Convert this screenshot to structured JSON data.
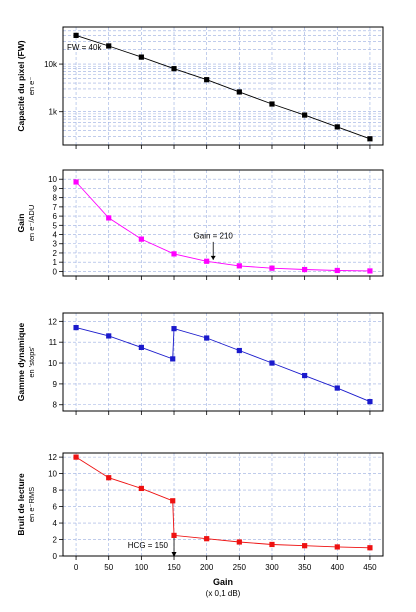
{
  "colors": {
    "frame": "#000000",
    "grid": "#9aaee0",
    "fw": "#000000",
    "gain": "#ff00ff",
    "dr": "#1a1acc",
    "noise": "#ee1111"
  },
  "chart_data": [
    {
      "type": "line",
      "ylabel": "Capacité du pixel (FW)",
      "ysublabel": "en e⁻",
      "yscale": "log",
      "ylim": [
        200,
        60000
      ],
      "yticks": [
        1000,
        10000
      ],
      "ytick_labels": [
        "1k",
        "10k"
      ],
      "xlim": [
        -20,
        470
      ],
      "x": [
        0,
        50,
        100,
        150,
        200,
        250,
        300,
        350,
        400,
        450
      ],
      "series": [
        {
          "values": [
            40000,
            24000,
            14000,
            8000,
            4700,
            2600,
            1450,
            850,
            480,
            270
          ]
        }
      ],
      "annotations": [
        "FW = 40k"
      ]
    },
    {
      "type": "line",
      "ylabel": "Gain",
      "ysublabel": "en e⁻/ADU",
      "ylim": [
        -0.5,
        11
      ],
      "yticks": [
        0,
        1,
        2,
        3,
        4,
        5,
        6,
        7,
        8,
        9,
        10
      ],
      "xlim": [
        -20,
        470
      ],
      "x": [
        0,
        50,
        100,
        150,
        200,
        250,
        300,
        350,
        400,
        450
      ],
      "series": [
        {
          "values": [
            9.7,
            5.8,
            3.5,
            1.9,
            1.1,
            0.6,
            0.35,
            0.2,
            0.1,
            0.05
          ]
        }
      ],
      "annotations": [
        "Gain = 210"
      ]
    },
    {
      "type": "line",
      "ylabel": "Gamme dynamique",
      "ysublabel": "en 'stops'",
      "ylim": [
        7.7,
        12.4
      ],
      "yticks": [
        8,
        9,
        10,
        11,
        12
      ],
      "xlim": [
        -20,
        470
      ],
      "x": [
        0,
        50,
        100,
        148,
        150,
        200,
        250,
        300,
        350,
        400,
        450
      ],
      "series": [
        {
          "values": [
            11.7,
            11.3,
            10.75,
            10.2,
            11.65,
            11.2,
            10.6,
            10.0,
            9.4,
            8.8,
            8.15
          ]
        }
      ]
    },
    {
      "type": "line",
      "ylabel": "Bruit de lecture",
      "ysublabel": "en e⁻RMS",
      "xlabel": "Gain",
      "xsublabel": "(x 0,1 dB)",
      "ylim": [
        0,
        12.5
      ],
      "yticks": [
        0,
        2,
        4,
        6,
        8,
        10,
        12
      ],
      "xlim": [
        -20,
        470
      ],
      "xticks": [
        0,
        50,
        100,
        150,
        200,
        250,
        300,
        350,
        400,
        450
      ],
      "x": [
        0,
        50,
        100,
        148,
        150,
        200,
        250,
        300,
        350,
        400,
        450
      ],
      "series": [
        {
          "values": [
            12.0,
            9.5,
            8.2,
            6.7,
            2.5,
            2.1,
            1.7,
            1.4,
            1.25,
            1.1,
            1.0
          ]
        }
      ],
      "annotations": [
        "HCG = 150"
      ]
    }
  ]
}
